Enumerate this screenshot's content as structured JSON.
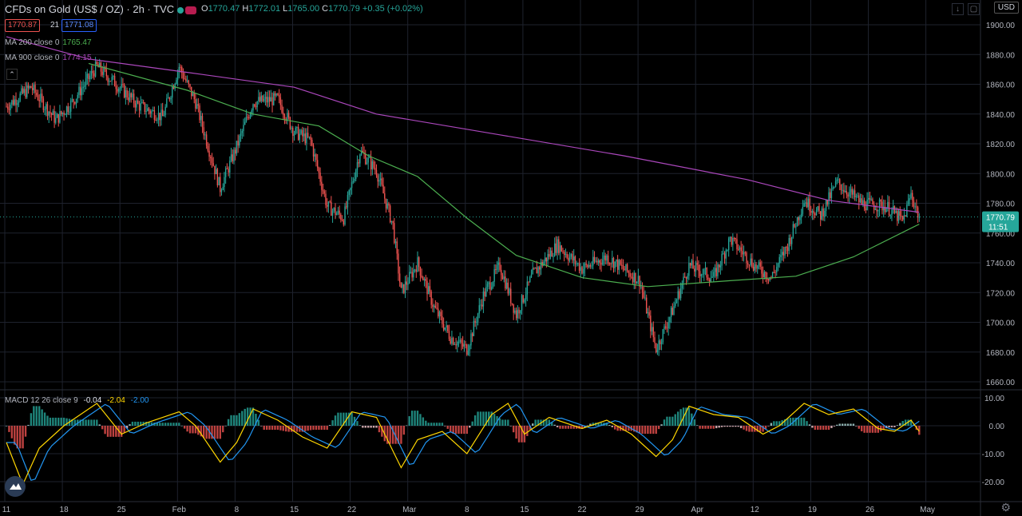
{
  "header": {
    "title": "CFDs on Gold (US$ / OZ) · 2h · TVC",
    "ohlc": [
      {
        "k": "O",
        "v": "1770.47"
      },
      {
        "k": "H",
        "v": "1772.01"
      },
      {
        "k": "L",
        "v": "1765.00"
      },
      {
        "k": "C",
        "v": "1770.79"
      }
    ],
    "change": "+0.35 (+0.02%)",
    "bid": "1770.87",
    "spread": "21",
    "ask": "1771.08",
    "currency": "USD"
  },
  "indicators": {
    "ma200": {
      "label": "MA 200 close 0",
      "value": "1765.47",
      "color": "#4caf50"
    },
    "ma900": {
      "label": "MA 900 close 0",
      "value": "1774.15",
      "color": "#ab47bc"
    },
    "macd": {
      "label": "MACD 12 26 close 9",
      "hist": "-0.04",
      "macd": "-2.04",
      "signal": "-2.00",
      "hist_color": "#e0e3eb",
      "macd_color": "#ffd600",
      "signal_color": "#2196f3"
    }
  },
  "price_label": {
    "value": "1770.79",
    "countdown": "11:51",
    "color": "#26a69a"
  },
  "icons": {
    "collapse": "chevron-up-icon",
    "logo": "tradingview-logo-icon",
    "settings": "gear-icon",
    "down": "arrow-down-icon",
    "fullscreen": "maximize-icon"
  },
  "chart_data": {
    "type": "candlestick",
    "title": "CFDs on Gold (US$ / OZ) · 2h · TVC",
    "price_axis": {
      "range": [
        1655,
        1905
      ],
      "ticks": [
        "1900.00",
        "1880.00",
        "1860.00",
        "1840.00",
        "1820.00",
        "1800.00",
        "1780.00",
        "1760.00",
        "1740.00",
        "1720.00",
        "1700.00",
        "1680.00",
        "1660.00"
      ]
    },
    "macd_axis": {
      "range": [
        -25,
        13
      ],
      "ticks": [
        "10.00",
        "0.00",
        "-10.00",
        "-20.00"
      ]
    },
    "time_axis": {
      "labels": [
        "11",
        "18",
        "25",
        "Feb",
        "8",
        "15",
        "22",
        "Mar",
        "8",
        "15",
        "22",
        "29",
        "Apr",
        "12",
        "19",
        "26",
        "May"
      ],
      "index": [
        0,
        7,
        14,
        21,
        28,
        35,
        42,
        49,
        56,
        63,
        70,
        77,
        84,
        91,
        98,
        105,
        112
      ]
    },
    "close_path": [
      {
        "t": 0,
        "p": 1845
      },
      {
        "t": 3,
        "p": 1858
      },
      {
        "t": 6,
        "p": 1836
      },
      {
        "t": 8,
        "p": 1848
      },
      {
        "t": 11,
        "p": 1872
      },
      {
        "t": 13,
        "p": 1862
      },
      {
        "t": 16,
        "p": 1846
      },
      {
        "t": 19,
        "p": 1838
      },
      {
        "t": 21,
        "p": 1872
      },
      {
        "t": 23,
        "p": 1848
      },
      {
        "t": 26,
        "p": 1790
      },
      {
        "t": 28,
        "p": 1818
      },
      {
        "t": 30,
        "p": 1848
      },
      {
        "t": 33,
        "p": 1850
      },
      {
        "t": 35,
        "p": 1828
      },
      {
        "t": 37,
        "p": 1822
      },
      {
        "t": 39,
        "p": 1778
      },
      {
        "t": 41,
        "p": 1770
      },
      {
        "t": 43,
        "p": 1815
      },
      {
        "t": 45,
        "p": 1802
      },
      {
        "t": 47,
        "p": 1765
      },
      {
        "t": 48,
        "p": 1720
      },
      {
        "t": 50,
        "p": 1740
      },
      {
        "t": 52,
        "p": 1710
      },
      {
        "t": 54,
        "p": 1690
      },
      {
        "t": 56,
        "p": 1682
      },
      {
        "t": 58,
        "p": 1718
      },
      {
        "t": 60,
        "p": 1738
      },
      {
        "t": 62,
        "p": 1705
      },
      {
        "t": 64,
        "p": 1732
      },
      {
        "t": 67,
        "p": 1752
      },
      {
        "t": 70,
        "p": 1736
      },
      {
        "t": 73,
        "p": 1744
      },
      {
        "t": 77,
        "p": 1728
      },
      {
        "t": 79,
        "p": 1682
      },
      {
        "t": 81,
        "p": 1708
      },
      {
        "t": 83,
        "p": 1738
      },
      {
        "t": 86,
        "p": 1730
      },
      {
        "t": 88,
        "p": 1756
      },
      {
        "t": 91,
        "p": 1738
      },
      {
        "t": 93,
        "p": 1730
      },
      {
        "t": 95,
        "p": 1752
      },
      {
        "t": 97,
        "p": 1782
      },
      {
        "t": 99,
        "p": 1772
      },
      {
        "t": 101,
        "p": 1794
      },
      {
        "t": 104,
        "p": 1780
      },
      {
        "t": 107,
        "p": 1778
      },
      {
        "t": 109,
        "p": 1768
      },
      {
        "t": 110,
        "p": 1786
      },
      {
        "t": 111,
        "p": 1770.79
      }
    ],
    "ma200_path": [
      {
        "t": 10,
        "p": 1874
      },
      {
        "t": 22,
        "p": 1856
      },
      {
        "t": 30,
        "p": 1840
      },
      {
        "t": 38,
        "p": 1832
      },
      {
        "t": 44,
        "p": 1812
      },
      {
        "t": 50,
        "p": 1798
      },
      {
        "t": 56,
        "p": 1770
      },
      {
        "t": 62,
        "p": 1745
      },
      {
        "t": 70,
        "p": 1730
      },
      {
        "t": 78,
        "p": 1724
      },
      {
        "t": 88,
        "p": 1728
      },
      {
        "t": 96,
        "p": 1731
      },
      {
        "t": 103,
        "p": 1744
      },
      {
        "t": 111,
        "p": 1766
      }
    ],
    "ma900_path": [
      {
        "t": 0,
        "p": 1892
      },
      {
        "t": 10,
        "p": 1877
      },
      {
        "t": 22,
        "p": 1868
      },
      {
        "t": 35,
        "p": 1858
      },
      {
        "t": 45,
        "p": 1840
      },
      {
        "t": 60,
        "p": 1826
      },
      {
        "t": 75,
        "p": 1812
      },
      {
        "t": 90,
        "p": 1796
      },
      {
        "t": 100,
        "p": 1782
      },
      {
        "t": 111,
        "p": 1774
      }
    ],
    "macd_path": [
      {
        "t": 0,
        "p": -6
      },
      {
        "t": 2,
        "p": -21
      },
      {
        "t": 4,
        "p": -8
      },
      {
        "t": 7,
        "p": 0
      },
      {
        "t": 11,
        "p": 8
      },
      {
        "t": 14,
        "p": -3
      },
      {
        "t": 17,
        "p": 1
      },
      {
        "t": 21,
        "p": 5
      },
      {
        "t": 23,
        "p": 0
      },
      {
        "t": 26,
        "p": -13
      },
      {
        "t": 28,
        "p": -6
      },
      {
        "t": 30,
        "p": 6
      },
      {
        "t": 33,
        "p": 2
      },
      {
        "t": 36,
        "p": -4
      },
      {
        "t": 39,
        "p": -8
      },
      {
        "t": 42,
        "p": 5
      },
      {
        "t": 45,
        "p": 3
      },
      {
        "t": 48,
        "p": -15
      },
      {
        "t": 50,
        "p": -5
      },
      {
        "t": 53,
        "p": -2
      },
      {
        "t": 56,
        "p": -10
      },
      {
        "t": 59,
        "p": 4
      },
      {
        "t": 61,
        "p": 8
      },
      {
        "t": 63,
        "p": -3
      },
      {
        "t": 66,
        "p": 3
      },
      {
        "t": 70,
        "p": -1
      },
      {
        "t": 73,
        "p": 2
      },
      {
        "t": 76,
        "p": -3
      },
      {
        "t": 79,
        "p": -11
      },
      {
        "t": 81,
        "p": -5
      },
      {
        "t": 83,
        "p": 7
      },
      {
        "t": 86,
        "p": 4
      },
      {
        "t": 89,
        "p": 3
      },
      {
        "t": 92,
        "p": -3
      },
      {
        "t": 94,
        "p": 0
      },
      {
        "t": 97,
        "p": 8
      },
      {
        "t": 100,
        "p": 4
      },
      {
        "t": 103,
        "p": 6
      },
      {
        "t": 106,
        "p": -1
      },
      {
        "t": 108,
        "p": -2
      },
      {
        "t": 110,
        "p": 2
      },
      {
        "t": 111,
        "p": -2
      }
    ],
    "last_price": 1770.79
  }
}
